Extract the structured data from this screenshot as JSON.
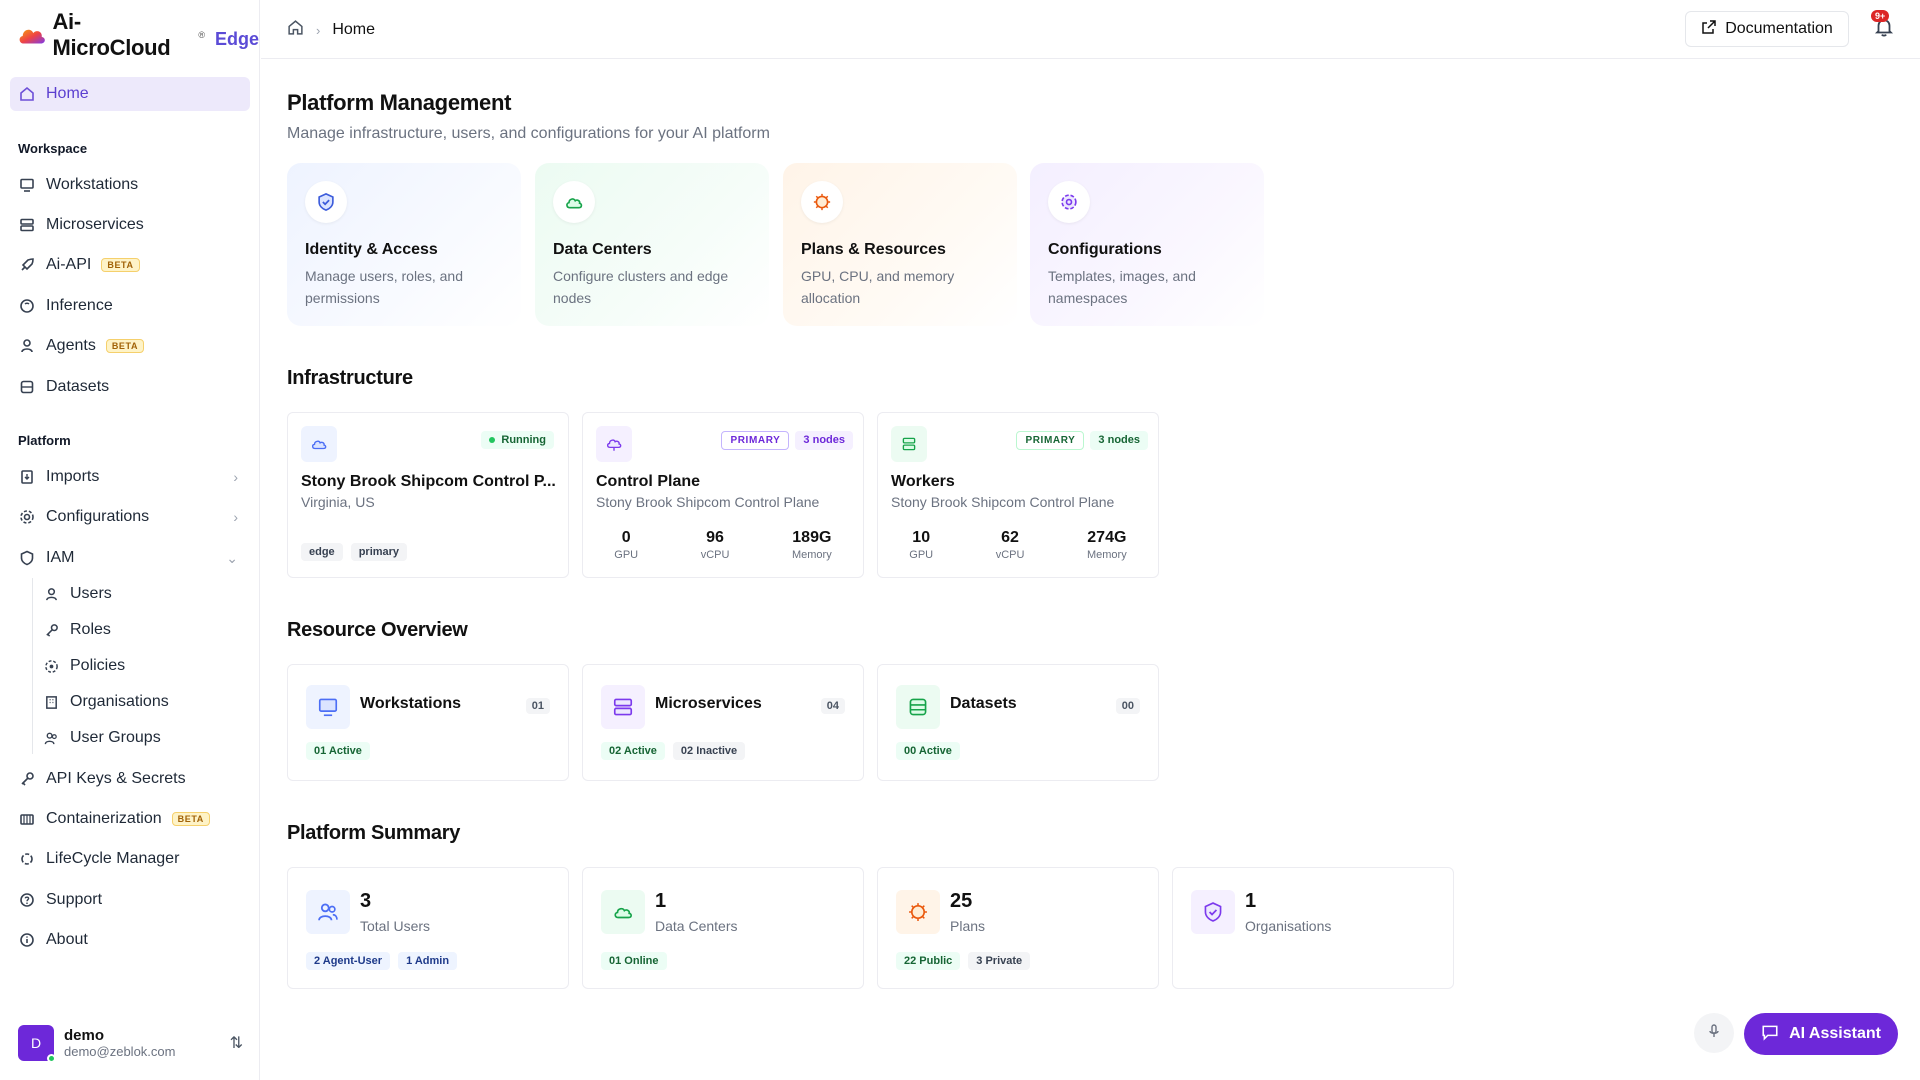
{
  "app": {
    "name": "Ai-MicroCloud",
    "trademark": "®",
    "edition": "Edge"
  },
  "sidebar": {
    "home": "Home",
    "workspace_title": "Workspace",
    "workspace": [
      {
        "label": "Workstations",
        "icon": "monitor-icon"
      },
      {
        "label": "Microservices",
        "icon": "server-icon"
      },
      {
        "label": "Ai-API",
        "icon": "rocket-icon",
        "badge": "BETA"
      },
      {
        "label": "Inference",
        "icon": "brain-icon"
      },
      {
        "label": "Agents",
        "icon": "agent-icon",
        "badge": "BETA"
      },
      {
        "label": "Datasets",
        "icon": "database-icon"
      }
    ],
    "platform_title": "Platform",
    "platform": [
      {
        "label": "Imports",
        "icon": "import-icon"
      },
      {
        "label": "Configurations",
        "icon": "gear-icon"
      },
      {
        "label": "IAM",
        "icon": "shield-icon"
      }
    ],
    "iam_children": [
      {
        "label": "Users",
        "icon": "user-icon"
      },
      {
        "label": "Roles",
        "icon": "key-icon"
      },
      {
        "label": "Policies",
        "icon": "policy-icon"
      },
      {
        "label": "Organisations",
        "icon": "building-icon"
      },
      {
        "label": "User Groups",
        "icon": "users-icon"
      }
    ],
    "bottom": [
      {
        "label": "API Keys & Secrets",
        "icon": "key-icon"
      },
      {
        "label": "Containerization",
        "icon": "container-icon",
        "badge": "BETA"
      },
      {
        "label": "LifeCycle Manager",
        "icon": "lifecycle-icon"
      },
      {
        "label": "Support",
        "icon": "help-icon"
      },
      {
        "label": "About",
        "icon": "info-icon"
      }
    ],
    "user": {
      "initial": "D",
      "name": "demo",
      "email": "demo@zeblok.com"
    }
  },
  "topbar": {
    "breadcrumb": "Home",
    "documentation": "Documentation",
    "notification_count": "9+"
  },
  "page": {
    "title": "Platform Management",
    "subtitle": "Manage infrastructure, users, and configurations for your AI platform"
  },
  "quick_cards": [
    {
      "title": "Identity & Access",
      "desc": "Manage users, roles, and permissions",
      "icon": "shield-check-icon",
      "color": "#3b5bdb"
    },
    {
      "title": "Data Centers",
      "desc": "Configure clusters and edge nodes",
      "icon": "cloud-icon",
      "color": "#16a34a"
    },
    {
      "title": "Plans & Resources",
      "desc": "GPU, CPU, and memory allocation",
      "icon": "cpu-icon",
      "color": "#ea580c"
    },
    {
      "title": "Configurations",
      "desc": "Templates, images, and namespaces",
      "icon": "gear-icon",
      "color": "#7c3aed"
    }
  ],
  "infrastructure": {
    "title": "Infrastructure",
    "datacenter": {
      "name": "Stony Brook Shipcom Control P...",
      "location": "Virginia, US",
      "status": "Running",
      "tags": [
        "edge",
        "primary"
      ]
    },
    "control_plane": {
      "name": "Control Plane",
      "parent": "Stony Brook Shipcom Control Plane",
      "role": "PRIMARY",
      "nodes": "3 nodes",
      "stats": [
        {
          "value": "0",
          "label": "GPU"
        },
        {
          "value": "96",
          "label": "vCPU"
        },
        {
          "value": "189G",
          "label": "Memory"
        }
      ]
    },
    "workers": {
      "name": "Workers",
      "parent": "Stony Brook Shipcom Control Plane",
      "role": "PRIMARY",
      "nodes": "3 nodes",
      "stats": [
        {
          "value": "10",
          "label": "GPU"
        },
        {
          "value": "62",
          "label": "vCPU"
        },
        {
          "value": "274G",
          "label": "Memory"
        }
      ]
    }
  },
  "resource_overview": {
    "title": "Resource Overview",
    "items": [
      {
        "name": "Workstations",
        "count": "01",
        "tags": [
          "01 Active"
        ]
      },
      {
        "name": "Microservices",
        "count": "04",
        "tags": [
          "02 Active",
          "02 Inactive"
        ]
      },
      {
        "name": "Datasets",
        "count": "00",
        "tags": [
          "00 Active"
        ]
      }
    ]
  },
  "platform_summary": {
    "title": "Platform Summary",
    "items": [
      {
        "value": "3",
        "label": "Total Users",
        "tags": [
          "2 Agent-User",
          "1 Admin"
        ]
      },
      {
        "value": "1",
        "label": "Data Centers",
        "tags": [
          "01 Online"
        ]
      },
      {
        "value": "25",
        "label": "Plans",
        "tags": [
          "22 Public",
          "3 Private"
        ]
      },
      {
        "value": "1",
        "label": "Organisations",
        "tags": []
      }
    ]
  },
  "assistant": {
    "label": "AI Assistant"
  }
}
